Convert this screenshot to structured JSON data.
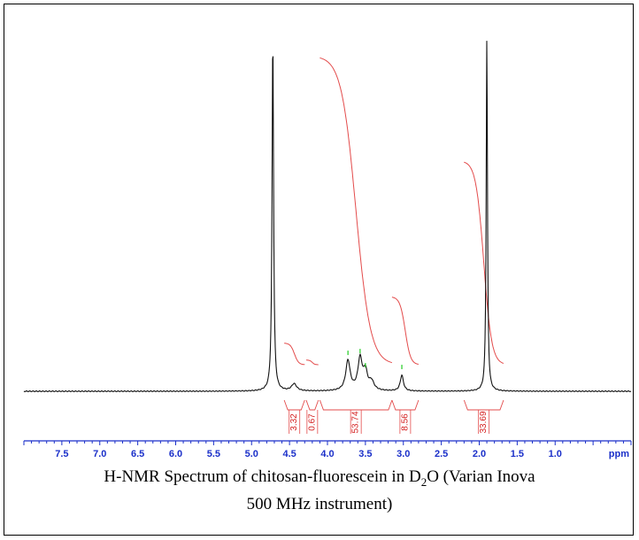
{
  "chart_data": {
    "type": "line",
    "title": "",
    "xlabel": "ppm",
    "x_axis": {
      "range": [
        8.0,
        0.0
      ],
      "reversed": true,
      "major_ticks": [
        7.5,
        7.0,
        6.5,
        6.0,
        5.5,
        5.0,
        4.5,
        4.0,
        3.5,
        3.0,
        2.5,
        2.0,
        1.5,
        1.0
      ],
      "tick_labels": [
        "7.5",
        "7.0",
        "6.5",
        "6.0",
        "5.5",
        "5.0",
        "4.5",
        "4.0",
        "3.5",
        "3.0",
        "2.5",
        "2.0",
        "1.5",
        "1.0"
      ],
      "minor_step": 0.1,
      "unit_label": "ppm"
    },
    "peaks": [
      {
        "shift": 4.72,
        "height": 1.0,
        "width": 0.012
      },
      {
        "shift": 4.44,
        "height": 0.02,
        "width": 0.04
      },
      {
        "shift": 3.73,
        "height": 0.085,
        "width": 0.035
      },
      {
        "shift": 3.57,
        "height": 0.09,
        "width": 0.035
      },
      {
        "shift": 3.5,
        "height": 0.05,
        "width": 0.03
      },
      {
        "shift": 3.42,
        "height": 0.025,
        "width": 0.04
      },
      {
        "shift": 3.02,
        "height": 0.045,
        "width": 0.025
      },
      {
        "shift": 1.9,
        "height": 1.0,
        "width": 0.01
      }
    ],
    "integrals": [
      {
        "label": "3.32",
        "from": 4.57,
        "to": 4.3,
        "curve_height": 0.07
      },
      {
        "label": "0.67",
        "from": 4.28,
        "to": 4.12,
        "curve_height": 0.015
      },
      {
        "label": "53.74",
        "from": 4.1,
        "to": 3.15,
        "curve_height": 1.0
      },
      {
        "label": "8.56",
        "from": 3.15,
        "to": 2.8,
        "curve_height": 0.22
      },
      {
        "label": "33.69",
        "from": 2.2,
        "to": 1.68,
        "curve_height": 0.66
      }
    ],
    "colors": {
      "spectrum": "#111111",
      "integral": "#e34b4b",
      "axis": "#1a2fc9",
      "peak_marker": "#22cc22"
    }
  },
  "caption": {
    "text_before_sub": "H-NMR Spectrum of chitosan-fluorescein in D",
    "sub": "2",
    "text_after_sub_line1": "O (Varian Inova",
    "line2": "500 MHz instrument)"
  }
}
